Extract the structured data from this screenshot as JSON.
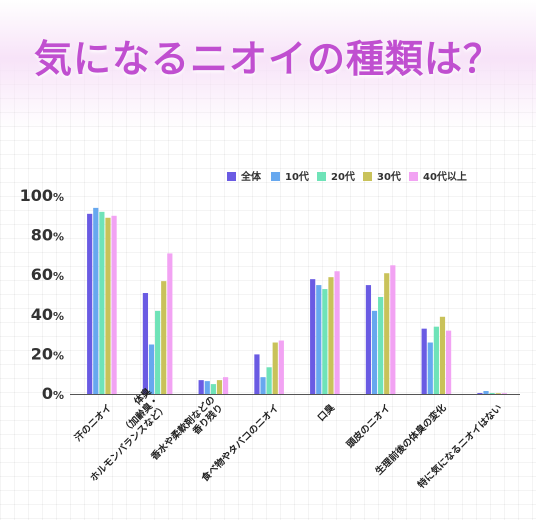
{
  "title": "気になるニオイの種類は？",
  "colors": {
    "title": "#c04fd0",
    "axis": "#555555",
    "series": [
      "#6a5be3",
      "#67a8ef",
      "#6fe3b8",
      "#c9c25a",
      "#f2a3f3"
    ]
  },
  "chart_data": {
    "type": "bar",
    "title": "気になるニオイの種類は？",
    "xlabel": "",
    "ylabel": "",
    "ylim": [
      0,
      100
    ],
    "yticks": [
      {
        "value": 0,
        "label": "0",
        "unit": "%"
      },
      {
        "value": 20,
        "label": "20",
        "unit": "%"
      },
      {
        "value": 40,
        "label": "40",
        "unit": "%"
      },
      {
        "value": 60,
        "label": "60",
        "unit": "%"
      },
      {
        "value": 80,
        "label": "80",
        "unit": "%"
      },
      {
        "value": 100,
        "label": "100",
        "unit": "%"
      }
    ],
    "grid": false,
    "legend": "top-right",
    "categories": [
      "汗のニオイ",
      "体臭（加齢臭・ホルモンバランスなど）",
      "香水や柔軟剤などの香り残り",
      "食べ物やタバコのニオイ",
      "口臭",
      "頭皮のニオイ",
      "生理前後の体臭の変化",
      "特に気になるニオイはない"
    ],
    "category_lines": [
      [
        "汗のニオイ"
      ],
      [
        "体臭",
        "（加齢臭・",
        "ホルモンバランスなど）"
      ],
      [
        "香水や柔軟剤などの",
        "香り残り"
      ],
      [
        "食べ物やタバコのニオイ"
      ],
      [
        "口臭"
      ],
      [
        "頭皮のニオイ"
      ],
      [
        "生理前後の体臭の変化"
      ],
      [
        "特に気になるニオイはない"
      ]
    ],
    "series": [
      {
        "name": "全体",
        "values": [
          91,
          51,
          7,
          20,
          58,
          55,
          33,
          0.5
        ]
      },
      {
        "name": "10代",
        "values": [
          94,
          25,
          6.5,
          8.5,
          55,
          42,
          26,
          1.5
        ]
      },
      {
        "name": "20代",
        "values": [
          92,
          42,
          5,
          13.5,
          53,
          49,
          34,
          0.5
        ]
      },
      {
        "name": "30代",
        "values": [
          89,
          57,
          7,
          26,
          59,
          61,
          39,
          0.3
        ]
      },
      {
        "name": "40代以上",
        "values": [
          90,
          71,
          8.5,
          27,
          62,
          65,
          32,
          0.3
        ]
      }
    ]
  }
}
